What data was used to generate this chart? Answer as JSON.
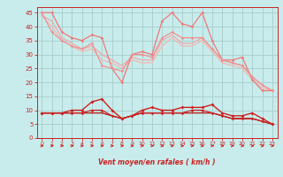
{
  "background_color": "#c8ecec",
  "grid_color": "#a8cccc",
  "xlabel": "Vent moyen/en rafales ( km/h )",
  "xlim": [
    -0.5,
    23.5
  ],
  "ylim": [
    0,
    47
  ],
  "yticks": [
    0,
    5,
    10,
    15,
    20,
    25,
    30,
    35,
    40,
    45
  ],
  "xticks": [
    0,
    1,
    2,
    3,
    4,
    5,
    6,
    7,
    8,
    9,
    10,
    11,
    12,
    13,
    14,
    15,
    16,
    17,
    18,
    19,
    20,
    21,
    22,
    23
  ],
  "series": [
    {
      "y": [
        45,
        45,
        38,
        36,
        35,
        37,
        36,
        25,
        20,
        30,
        31,
        30,
        42,
        45,
        41,
        40,
        45,
        35,
        28,
        28,
        29,
        21,
        17,
        17
      ],
      "color": "#f07878",
      "lw": 0.9,
      "marker": "D",
      "ms": 1.8,
      "zorder": 3
    },
    {
      "y": [
        45,
        38,
        35,
        33,
        32,
        34,
        26,
        25,
        24,
        30,
        30,
        29,
        36,
        38,
        36,
        36,
        36,
        32,
        28,
        27,
        26,
        22,
        19,
        17
      ],
      "color": "#f09090",
      "lw": 0.9,
      "marker": "D",
      "ms": 1.8,
      "zorder": 3
    },
    {
      "y": [
        44,
        42,
        36,
        34,
        32,
        33,
        30,
        28,
        26,
        29,
        28,
        28,
        35,
        37,
        34,
        34,
        36,
        32,
        28,
        27,
        26,
        22,
        19,
        17
      ],
      "color": "#f0a8a8",
      "lw": 0.9,
      "marker": null,
      "ms": 0,
      "zorder": 2
    },
    {
      "y": [
        44,
        40,
        35,
        33,
        31,
        32,
        28,
        27,
        25,
        28,
        27,
        27,
        33,
        36,
        33,
        33,
        35,
        31,
        27,
        26,
        25,
        21,
        18,
        17
      ],
      "color": "#f0b8b0",
      "lw": 0.9,
      "marker": null,
      "ms": 0,
      "zorder": 2
    },
    {
      "y": [
        9,
        9,
        9,
        10,
        10,
        13,
        14,
        10,
        7,
        8,
        10,
        11,
        10,
        10,
        11,
        11,
        11,
        12,
        9,
        8,
        8,
        9,
        7,
        5
      ],
      "color": "#cc2222",
      "lw": 1.0,
      "marker": "D",
      "ms": 2.0,
      "zorder": 5
    },
    {
      "y": [
        9,
        9,
        9,
        9,
        9,
        10,
        10,
        8,
        7,
        8,
        9,
        9,
        9,
        9,
        9,
        10,
        10,
        9,
        8,
        7,
        7,
        7,
        6,
        5
      ],
      "color": "#cc2222",
      "lw": 0.9,
      "marker": "D",
      "ms": 1.8,
      "zorder": 4
    },
    {
      "y": [
        9,
        9,
        9,
        9,
        9,
        9,
        9,
        8,
        7,
        8,
        9,
        9,
        9,
        9,
        9,
        9,
        9,
        9,
        8,
        7,
        7,
        7,
        6,
        5
      ],
      "color": "#aa1111",
      "lw": 0.8,
      "marker": null,
      "ms": 0,
      "zorder": 3
    },
    {
      "y": [
        9,
        9,
        9,
        9,
        9,
        9,
        9,
        8,
        7,
        8,
        9,
        9,
        9,
        9,
        9,
        9,
        9,
        9,
        8,
        7,
        7,
        7,
        6,
        5
      ],
      "color": "#bb2222",
      "lw": 0.7,
      "marker": null,
      "ms": 0,
      "zorder": 3
    }
  ],
  "arrow_color": "#cc2222",
  "tick_color": "#cc2222",
  "label_color": "#cc2222"
}
